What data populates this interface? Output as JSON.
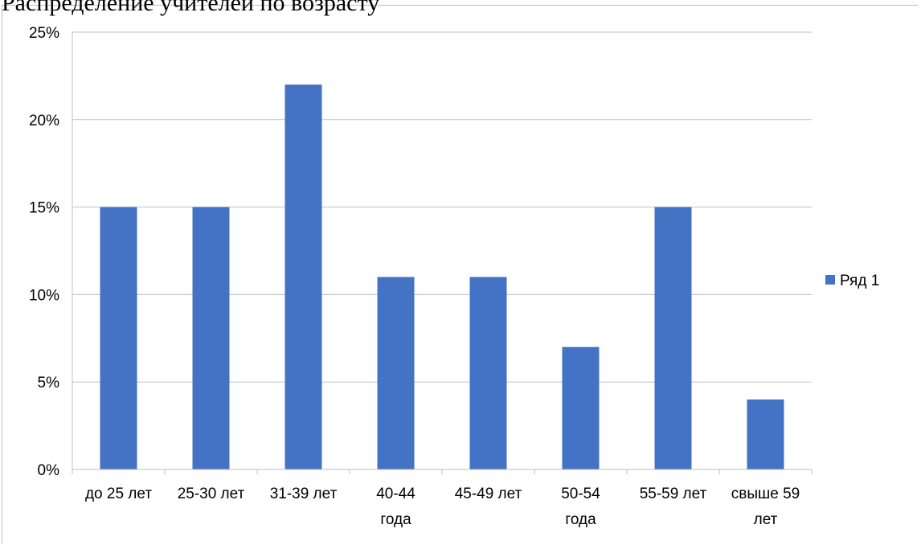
{
  "chart_data": {
    "type": "bar",
    "title": "Распределение учителей по возрасту",
    "categories": [
      [
        "до 25 лет"
      ],
      [
        "25-30 лет"
      ],
      [
        "31-39 лет"
      ],
      [
        "40-44",
        "года"
      ],
      [
        "45-49 лет"
      ],
      [
        "50-54",
        "года"
      ],
      [
        "55-59 лет"
      ],
      [
        "свыше 59",
        "лет"
      ]
    ],
    "series": [
      {
        "name": "Ряд 1",
        "values": [
          15,
          15,
          22,
          11,
          11,
          7,
          15,
          4
        ],
        "color": "#4472c4"
      }
    ],
    "y_ticks": [
      "0%",
      "5%",
      "10%",
      "15%",
      "20%",
      "25%"
    ],
    "ylim": [
      0,
      25
    ],
    "grid": true,
    "legend": "right"
  }
}
